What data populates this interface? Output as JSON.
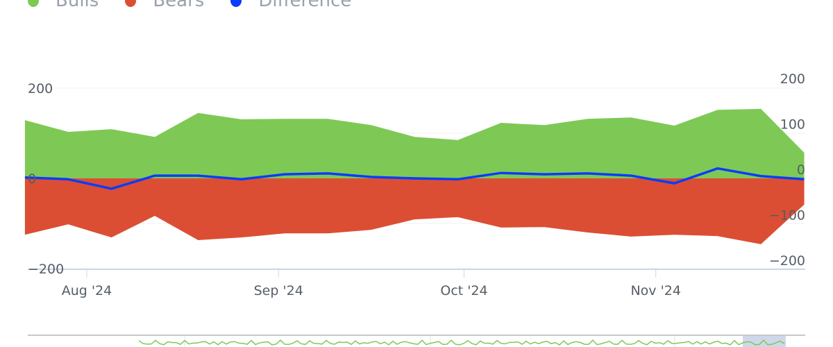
{
  "chart_data": {
    "type": "area",
    "title": "",
    "x": [
      "2024-07-22",
      "2024-07-29",
      "2024-08-05",
      "2024-08-12",
      "2024-08-19",
      "2024-08-26",
      "2024-09-02",
      "2024-09-09",
      "2024-09-16",
      "2024-09-23",
      "2024-09-30",
      "2024-10-07",
      "2024-10-14",
      "2024-10-21",
      "2024-10-28",
      "2024-11-04",
      "2024-11-11",
      "2024-11-18",
      "2024-11-25"
    ],
    "series": [
      {
        "name": "Bulls",
        "color": "#7ec955",
        "values": [
          129,
          103,
          109,
          92,
          145,
          131,
          132,
          132,
          118,
          92,
          85,
          123,
          118,
          132,
          135,
          117,
          152,
          154,
          57
        ]
      },
      {
        "name": "Bears",
        "color": "#dc4e33",
        "values": [
          -125,
          -102,
          -131,
          -83,
          -137,
          -131,
          -122,
          -122,
          -114,
          -91,
          -86,
          -109,
          -108,
          -120,
          -129,
          -125,
          -128,
          -146,
          -58
        ]
      },
      {
        "name": "Difference",
        "color": "#0a3cff",
        "values": [
          2,
          -2,
          -23,
          6,
          6,
          -2,
          9,
          11,
          3,
          0,
          -2,
          12,
          9,
          11,
          6,
          -11,
          22,
          5,
          -2
        ]
      }
    ],
    "x_ticks": [
      {
        "date": "2024-08-01",
        "label": "Aug '24"
      },
      {
        "date": "2024-09-01",
        "label": "Sep '24"
      },
      {
        "date": "2024-10-01",
        "label": "Oct '24"
      },
      {
        "date": "2024-11-01",
        "label": "Nov '24"
      }
    ],
    "y_left": {
      "ticks": [
        "200",
        "0",
        "−200"
      ],
      "ylim": [
        -200,
        200
      ]
    },
    "y_right": {
      "ticks": [
        "200",
        "100",
        "0",
        "−100",
        "−200"
      ],
      "ylim": [
        -200,
        200
      ]
    },
    "legend": "top-left"
  }
}
